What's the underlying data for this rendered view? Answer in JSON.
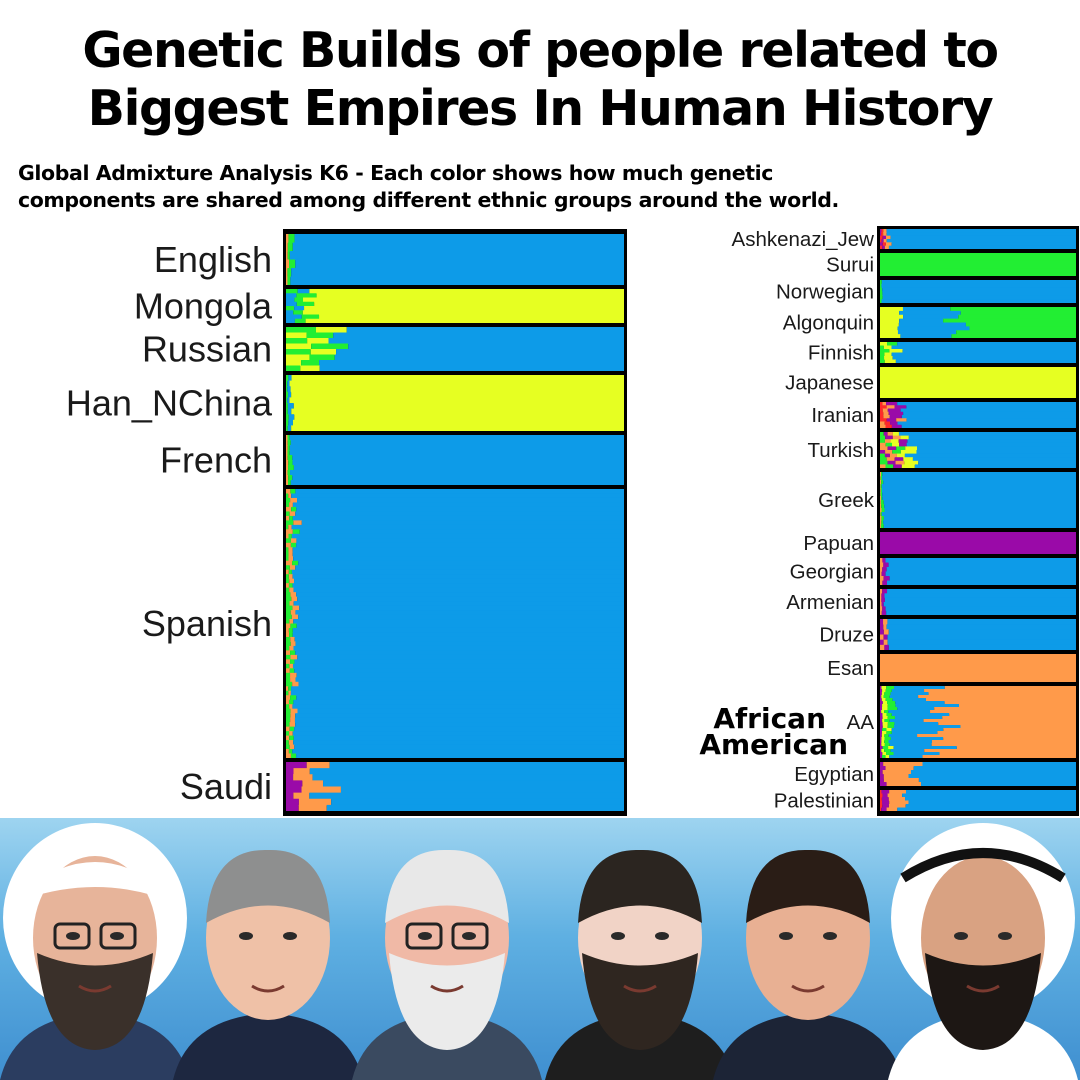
{
  "title_line1": "Genetic Builds of people related to",
  "title_line2": "Biggest Empires In Human History",
  "subtitle_line1": "Global Admixture Analysis K6 - Each color shows how much genetic",
  "subtitle_line2": "components are shared among different ethnic groups around the world.",
  "annotation": {
    "line1": "African",
    "line2": "American"
  },
  "components": [
    "blue",
    "yellow",
    "green",
    "orange",
    "purple",
    "red"
  ],
  "colors": {
    "blue": "#0d9be8",
    "yellow": "#e6ff22",
    "green": "#22ee33",
    "orange": "#ff9a4a",
    "purple": "#9a0aa8",
    "red": "#ff2a2a",
    "frame": "#000000"
  },
  "chart_data": [
    {
      "type": "bar",
      "orientation": "horizontal-stacked",
      "x_range": [
        0,
        1
      ],
      "groups": [
        {
          "label": "English",
          "samples": 6,
          "profile": {
            "blue": 0.985,
            "green": 0.01,
            "orange": 0.005
          }
        },
        {
          "label": "Mongola",
          "samples": 8,
          "profile": {
            "blue": 0.03,
            "yellow": 0.93,
            "green": 0.04
          }
        },
        {
          "label": "Russian",
          "samples": 8,
          "profile": {
            "blue": 0.86,
            "yellow": 0.07,
            "green": 0.07
          }
        },
        {
          "label": "Han_NChina",
          "samples": 10,
          "profile": {
            "blue": 0.01,
            "yellow": 0.985,
            "green": 0.005
          }
        },
        {
          "label": "French",
          "samples": 10,
          "profile": {
            "blue": 0.985,
            "green": 0.01,
            "orange": 0.005
          }
        },
        {
          "label": "Spanish",
          "samples": 60,
          "profile": {
            "blue": 0.975,
            "green": 0.012,
            "orange": 0.013
          }
        },
        {
          "label": "Saudi",
          "samples": 8,
          "profile": {
            "blue": 0.9,
            "orange": 0.065,
            "purple": 0.035
          }
        }
      ]
    },
    {
      "type": "bar",
      "orientation": "horizontal-stacked",
      "x_range": [
        0,
        1
      ],
      "groups": [
        {
          "label": "Ashkenazi_Jew",
          "samples": 6,
          "profile": {
            "blue": 0.96,
            "orange": 0.02,
            "red": 0.01,
            "purple": 0.01
          }
        },
        {
          "label": "Surui",
          "samples": 6,
          "profile": {
            "green": 1.0
          }
        },
        {
          "label": "Norwegian",
          "samples": 6,
          "profile": {
            "blue": 0.99,
            "green": 0.01
          }
        },
        {
          "label": "Algonquin",
          "samples": 8,
          "profile": {
            "green": 0.6,
            "yellow": 0.1,
            "blue": 0.3
          }
        },
        {
          "label": "Finnish",
          "samples": 6,
          "profile": {
            "blue": 0.93,
            "yellow": 0.04,
            "green": 0.03
          }
        },
        {
          "label": "Japanese",
          "samples": 8,
          "profile": {
            "yellow": 1.0
          }
        },
        {
          "label": "Iranian",
          "samples": 8,
          "profile": {
            "blue": 0.9,
            "purple": 0.05,
            "orange": 0.03,
            "red": 0.02
          }
        },
        {
          "label": "Turkish",
          "samples": 10,
          "profile": {
            "blue": 0.86,
            "yellow": 0.05,
            "green": 0.03,
            "orange": 0.03,
            "purple": 0.03
          }
        },
        {
          "label": "Greek",
          "samples": 14,
          "profile": {
            "blue": 0.985,
            "green": 0.01,
            "orange": 0.005
          }
        },
        {
          "label": "Papuan",
          "samples": 5,
          "profile": {
            "purple": 1.0
          }
        },
        {
          "label": "Georgian",
          "samples": 6,
          "profile": {
            "blue": 0.97,
            "purple": 0.02,
            "orange": 0.01
          }
        },
        {
          "label": "Armenian",
          "samples": 6,
          "profile": {
            "blue": 0.97,
            "purple": 0.02,
            "orange": 0.01
          }
        },
        {
          "label": "Druze",
          "samples": 6,
          "profile": {
            "blue": 0.96,
            "purple": 0.02,
            "orange": 0.02
          }
        },
        {
          "label": "Esan",
          "samples": 6,
          "profile": {
            "orange": 1.0
          }
        },
        {
          "label": "AA",
          "samples": 24,
          "profile": {
            "orange": 0.72,
            "blue": 0.22,
            "green": 0.03,
            "yellow": 0.02,
            "purple": 0.01
          }
        },
        {
          "label": "Egyptian",
          "samples": 6,
          "profile": {
            "blue": 0.84,
            "orange": 0.14,
            "purple": 0.02
          }
        },
        {
          "label": "Palestinian",
          "samples": 6,
          "profile": {
            "blue": 0.88,
            "orange": 0.08,
            "purple": 0.03,
            "red": 0.01
          }
        }
      ]
    }
  ]
}
